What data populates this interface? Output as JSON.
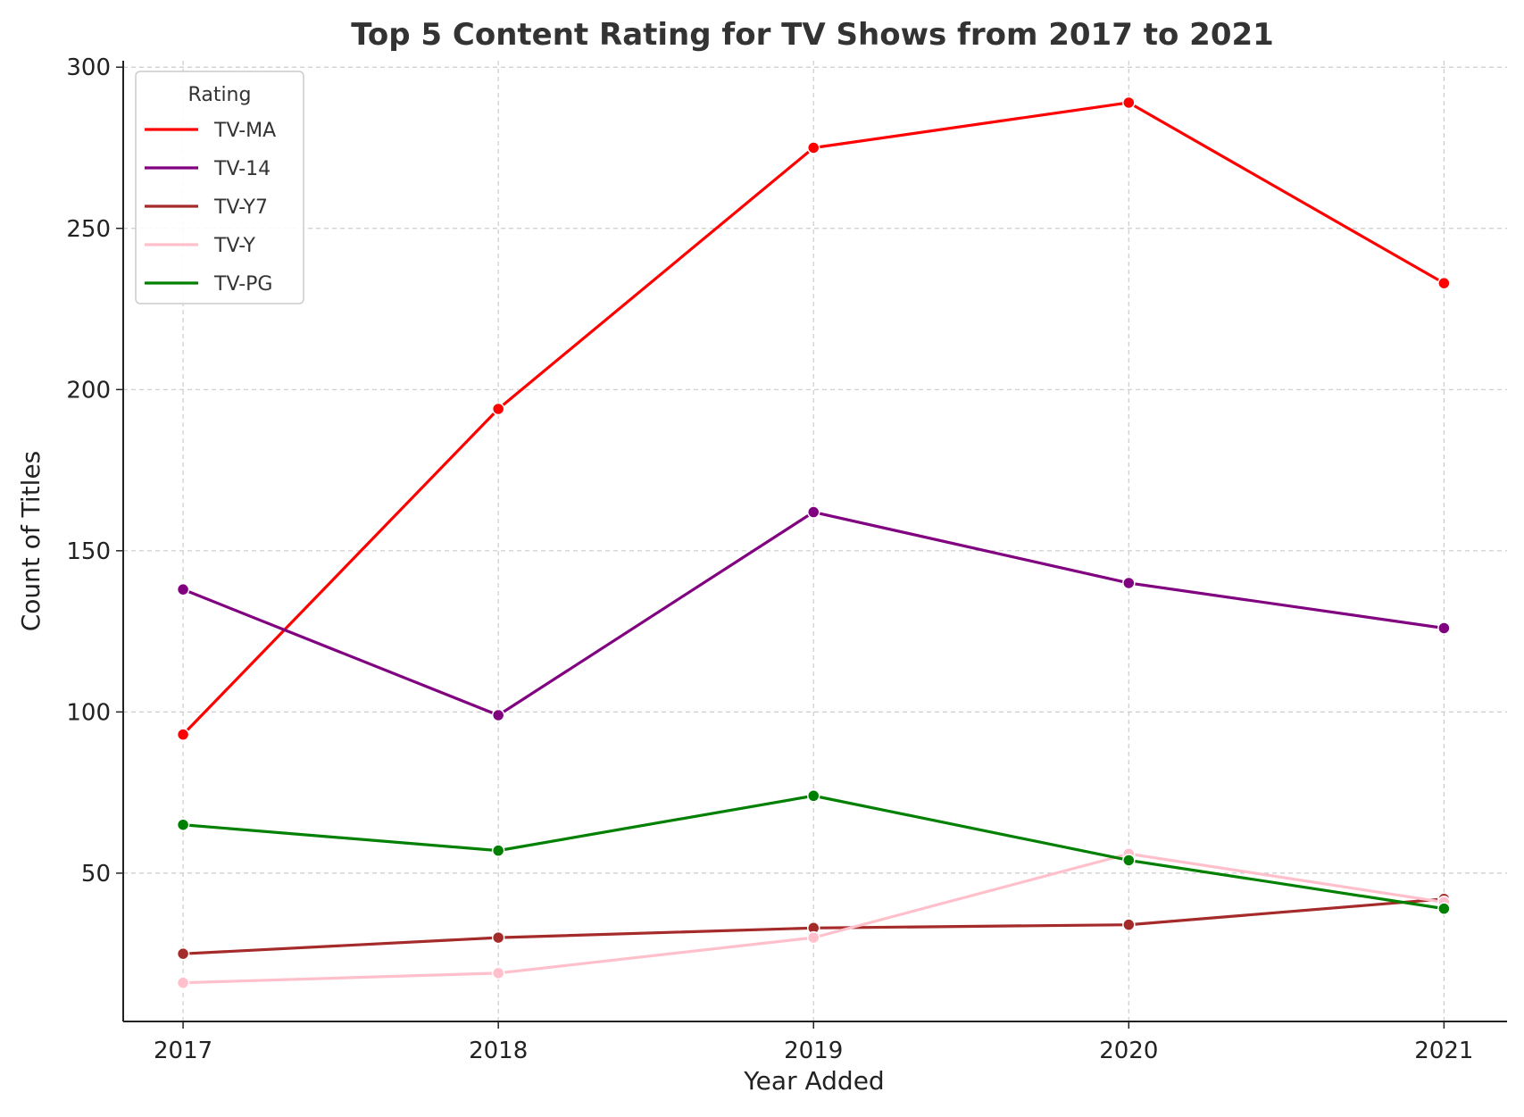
{
  "chart_data": {
    "type": "line",
    "title": "Top 5 Content Rating for TV Shows from 2017 to 2021",
    "xlabel": "Year Added",
    "ylabel": "Count of Titles",
    "x": [
      2017,
      2018,
      2019,
      2020,
      2021
    ],
    "xlim": [
      2016.81,
      2021.2
    ],
    "ylim": [
      4,
      302
    ],
    "yticks": [
      50,
      100,
      150,
      200,
      250,
      300
    ],
    "grid": true,
    "legend": {
      "title": "Rating",
      "placement": "top-left"
    },
    "series": [
      {
        "name": "TV-MA",
        "color": "#ff0000",
        "values": [
          93,
          194,
          275,
          289,
          233
        ]
      },
      {
        "name": "TV-14",
        "color": "#800080",
        "values": [
          138,
          99,
          162,
          140,
          126
        ]
      },
      {
        "name": "TV-Y7",
        "color": "#a52a2a",
        "values": [
          25,
          30,
          33,
          34,
          42
        ]
      },
      {
        "name": "TV-Y",
        "color": "#ffc0cb",
        "values": [
          16,
          19,
          30,
          56,
          41
        ]
      },
      {
        "name": "TV-PG",
        "color": "#008000",
        "values": [
          65,
          57,
          74,
          54,
          39
        ]
      }
    ]
  }
}
